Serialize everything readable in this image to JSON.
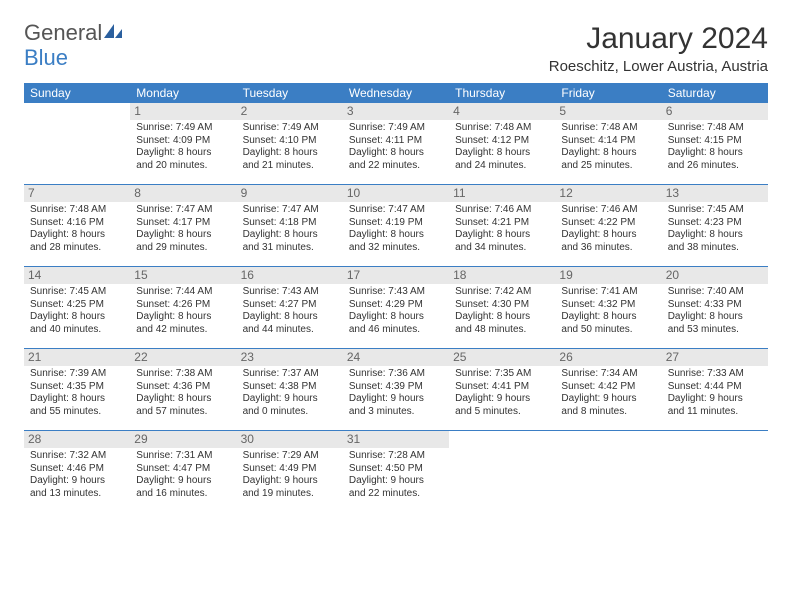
{
  "brand": {
    "name1": "General",
    "name2": "Blue"
  },
  "title": "January 2024",
  "location": "Roeschitz, Lower Austria, Austria",
  "colors": {
    "header_bg": "#3b7ec4",
    "header_text": "#ffffff",
    "daynum_bg": "#e8e8e8",
    "daynum_text": "#666666",
    "border": "#3b7ec4",
    "body_text": "#333333",
    "page_bg": "#ffffff",
    "brand_gray": "#555555",
    "brand_blue": "#3b7ec4"
  },
  "typography": {
    "body_font": "Arial",
    "title_size_pt": 22,
    "location_size_pt": 11,
    "weekday_size_pt": 9,
    "daynum_size_pt": 9,
    "detail_size_pt": 7.5
  },
  "weekdays": [
    "Sunday",
    "Monday",
    "Tuesday",
    "Wednesday",
    "Thursday",
    "Friday",
    "Saturday"
  ],
  "weeks": [
    [
      null,
      {
        "n": "1",
        "sunrise": "7:49 AM",
        "sunset": "4:09 PM",
        "dl1": "Daylight: 8 hours",
        "dl2": "and 20 minutes."
      },
      {
        "n": "2",
        "sunrise": "7:49 AM",
        "sunset": "4:10 PM",
        "dl1": "Daylight: 8 hours",
        "dl2": "and 21 minutes."
      },
      {
        "n": "3",
        "sunrise": "7:49 AM",
        "sunset": "4:11 PM",
        "dl1": "Daylight: 8 hours",
        "dl2": "and 22 minutes."
      },
      {
        "n": "4",
        "sunrise": "7:48 AM",
        "sunset": "4:12 PM",
        "dl1": "Daylight: 8 hours",
        "dl2": "and 24 minutes."
      },
      {
        "n": "5",
        "sunrise": "7:48 AM",
        "sunset": "4:14 PM",
        "dl1": "Daylight: 8 hours",
        "dl2": "and 25 minutes."
      },
      {
        "n": "6",
        "sunrise": "7:48 AM",
        "sunset": "4:15 PM",
        "dl1": "Daylight: 8 hours",
        "dl2": "and 26 minutes."
      }
    ],
    [
      {
        "n": "7",
        "sunrise": "7:48 AM",
        "sunset": "4:16 PM",
        "dl1": "Daylight: 8 hours",
        "dl2": "and 28 minutes."
      },
      {
        "n": "8",
        "sunrise": "7:47 AM",
        "sunset": "4:17 PM",
        "dl1": "Daylight: 8 hours",
        "dl2": "and 29 minutes."
      },
      {
        "n": "9",
        "sunrise": "7:47 AM",
        "sunset": "4:18 PM",
        "dl1": "Daylight: 8 hours",
        "dl2": "and 31 minutes."
      },
      {
        "n": "10",
        "sunrise": "7:47 AM",
        "sunset": "4:19 PM",
        "dl1": "Daylight: 8 hours",
        "dl2": "and 32 minutes."
      },
      {
        "n": "11",
        "sunrise": "7:46 AM",
        "sunset": "4:21 PM",
        "dl1": "Daylight: 8 hours",
        "dl2": "and 34 minutes."
      },
      {
        "n": "12",
        "sunrise": "7:46 AM",
        "sunset": "4:22 PM",
        "dl1": "Daylight: 8 hours",
        "dl2": "and 36 minutes."
      },
      {
        "n": "13",
        "sunrise": "7:45 AM",
        "sunset": "4:23 PM",
        "dl1": "Daylight: 8 hours",
        "dl2": "and 38 minutes."
      }
    ],
    [
      {
        "n": "14",
        "sunrise": "7:45 AM",
        "sunset": "4:25 PM",
        "dl1": "Daylight: 8 hours",
        "dl2": "and 40 minutes."
      },
      {
        "n": "15",
        "sunrise": "7:44 AM",
        "sunset": "4:26 PM",
        "dl1": "Daylight: 8 hours",
        "dl2": "and 42 minutes."
      },
      {
        "n": "16",
        "sunrise": "7:43 AM",
        "sunset": "4:27 PM",
        "dl1": "Daylight: 8 hours",
        "dl2": "and 44 minutes."
      },
      {
        "n": "17",
        "sunrise": "7:43 AM",
        "sunset": "4:29 PM",
        "dl1": "Daylight: 8 hours",
        "dl2": "and 46 minutes."
      },
      {
        "n": "18",
        "sunrise": "7:42 AM",
        "sunset": "4:30 PM",
        "dl1": "Daylight: 8 hours",
        "dl2": "and 48 minutes."
      },
      {
        "n": "19",
        "sunrise": "7:41 AM",
        "sunset": "4:32 PM",
        "dl1": "Daylight: 8 hours",
        "dl2": "and 50 minutes."
      },
      {
        "n": "20",
        "sunrise": "7:40 AM",
        "sunset": "4:33 PM",
        "dl1": "Daylight: 8 hours",
        "dl2": "and 53 minutes."
      }
    ],
    [
      {
        "n": "21",
        "sunrise": "7:39 AM",
        "sunset": "4:35 PM",
        "dl1": "Daylight: 8 hours",
        "dl2": "and 55 minutes."
      },
      {
        "n": "22",
        "sunrise": "7:38 AM",
        "sunset": "4:36 PM",
        "dl1": "Daylight: 8 hours",
        "dl2": "and 57 minutes."
      },
      {
        "n": "23",
        "sunrise": "7:37 AM",
        "sunset": "4:38 PM",
        "dl1": "Daylight: 9 hours",
        "dl2": "and 0 minutes."
      },
      {
        "n": "24",
        "sunrise": "7:36 AM",
        "sunset": "4:39 PM",
        "dl1": "Daylight: 9 hours",
        "dl2": "and 3 minutes."
      },
      {
        "n": "25",
        "sunrise": "7:35 AM",
        "sunset": "4:41 PM",
        "dl1": "Daylight: 9 hours",
        "dl2": "and 5 minutes."
      },
      {
        "n": "26",
        "sunrise": "7:34 AM",
        "sunset": "4:42 PM",
        "dl1": "Daylight: 9 hours",
        "dl2": "and 8 minutes."
      },
      {
        "n": "27",
        "sunrise": "7:33 AM",
        "sunset": "4:44 PM",
        "dl1": "Daylight: 9 hours",
        "dl2": "and 11 minutes."
      }
    ],
    [
      {
        "n": "28",
        "sunrise": "7:32 AM",
        "sunset": "4:46 PM",
        "dl1": "Daylight: 9 hours",
        "dl2": "and 13 minutes."
      },
      {
        "n": "29",
        "sunrise": "7:31 AM",
        "sunset": "4:47 PM",
        "dl1": "Daylight: 9 hours",
        "dl2": "and 16 minutes."
      },
      {
        "n": "30",
        "sunrise": "7:29 AM",
        "sunset": "4:49 PM",
        "dl1": "Daylight: 9 hours",
        "dl2": "and 19 minutes."
      },
      {
        "n": "31",
        "sunrise": "7:28 AM",
        "sunset": "4:50 PM",
        "dl1": "Daylight: 9 hours",
        "dl2": "and 22 minutes."
      },
      null,
      null,
      null
    ]
  ]
}
